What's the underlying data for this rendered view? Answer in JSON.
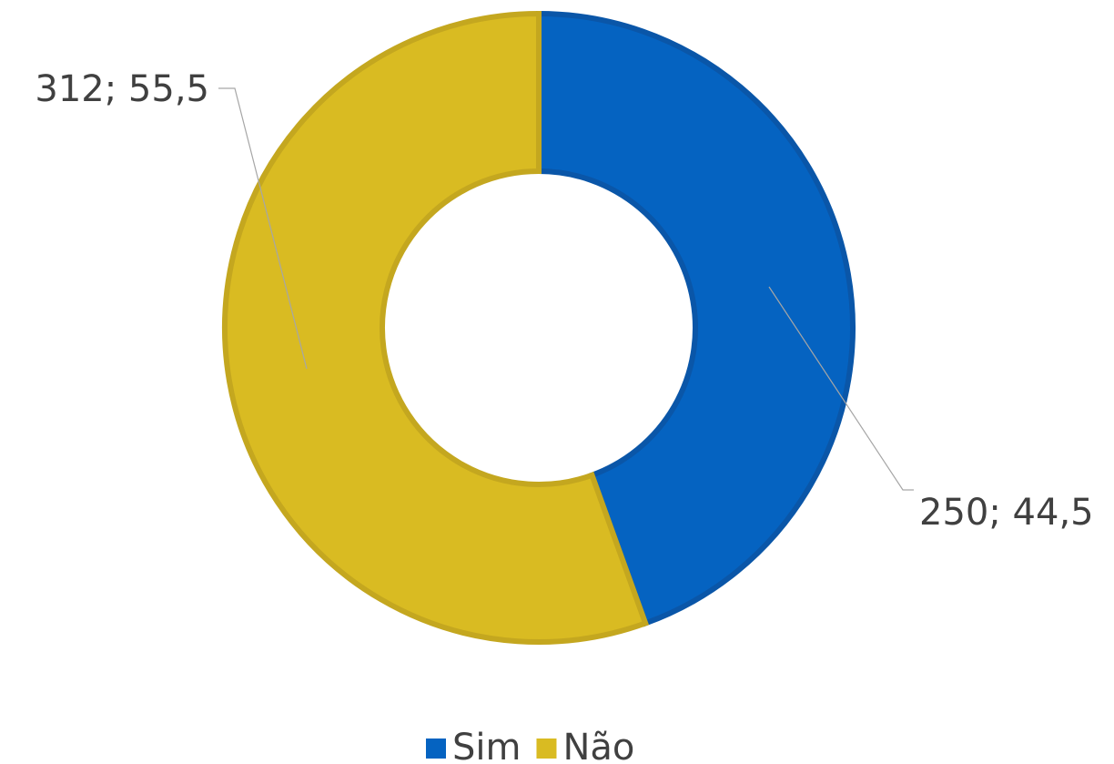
{
  "chart_data": {
    "type": "donut",
    "categories": [
      "Sim",
      "Não"
    ],
    "values": [
      250,
      312
    ],
    "value_labels": [
      "250; 44,5",
      "312; 55,5"
    ],
    "colors": [
      "#0563c1",
      "#d9bb22"
    ],
    "legend": "bottom"
  }
}
